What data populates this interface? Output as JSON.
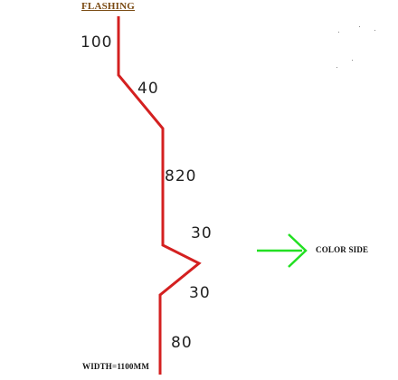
{
  "diagram": {
    "title": "FLASHING",
    "dimensions": [
      "100",
      "40",
      "820",
      "30",
      "30",
      "80"
    ],
    "color_side_label": "COLOR SIDE",
    "width_label": "WIDTH=1100MM",
    "colors": {
      "profile": "#d42020",
      "arrow": "#22e022",
      "title": "#7a4a12"
    }
  }
}
